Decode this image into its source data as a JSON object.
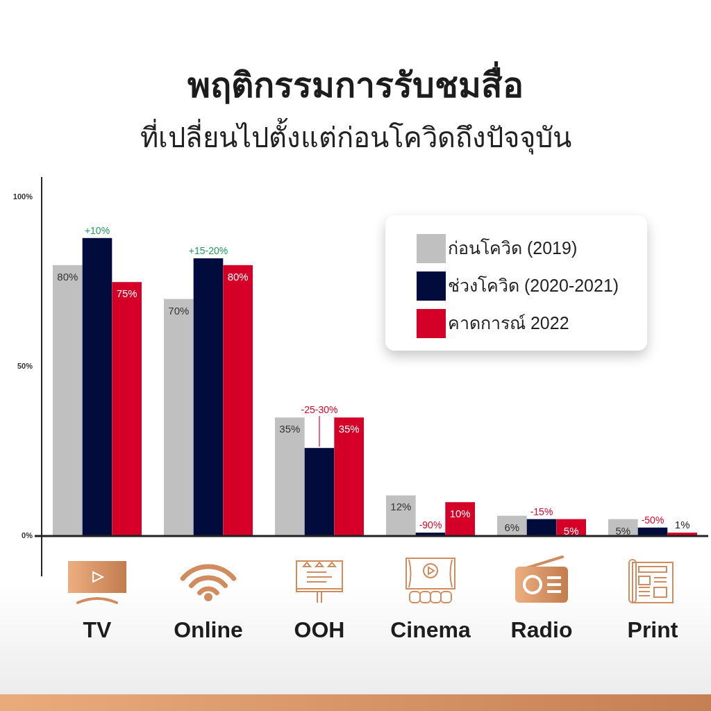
{
  "chart_data": {
    "type": "bar",
    "title": "พฤติกรรมการรับชมสื่อ",
    "subtitle": "ที่เปลี่ยนไปตั้งแต่ก่อนโควิดถึงปัจจุบัน",
    "categories": [
      "TV",
      "Online",
      "OOH",
      "Cinema",
      "Radio",
      "Print"
    ],
    "series": [
      {
        "name": "ก่อนโควิด (2019)",
        "color": "#c0c0c0",
        "values": [
          80,
          70,
          35,
          12,
          6,
          5
        ],
        "value_labels": [
          "80%",
          "70%",
          "35%",
          "12%",
          "6%",
          "5%"
        ]
      },
      {
        "name": "ช่วงโควิด (2020-2021)",
        "color": "#020c3c",
        "values": [
          88,
          82,
          26,
          1,
          5,
          2.5
        ]
      },
      {
        "name": "คาดการณ์ 2022",
        "color": "#d50027",
        "values": [
          75,
          80,
          35,
          10,
          5,
          1
        ],
        "value_labels": [
          "75%",
          "80%",
          "35%",
          "10%",
          "5%",
          "1%"
        ]
      }
    ],
    "ylim": [
      0,
      106
    ],
    "yticks": [
      {
        "value": 0,
        "label": "0%"
      },
      {
        "value": 50,
        "label": "50%"
      },
      {
        "value": 100,
        "label": "100%"
      }
    ],
    "annotations": [
      {
        "text": "+10%",
        "x": "TV",
        "y": 88
      },
      {
        "text": "+15-20%",
        "x": "Online",
        "y": 82
      },
      {
        "text": "-25-30%",
        "x": "OOH",
        "y": 26
      },
      {
        "text": "-90%",
        "x": "Cinema",
        "y": 1
      },
      {
        "text": "-15%",
        "x": "Radio",
        "y": 5
      },
      {
        "text": "-50%",
        "x": "Print",
        "y": 2.5
      }
    ],
    "legend": "top right"
  }
}
